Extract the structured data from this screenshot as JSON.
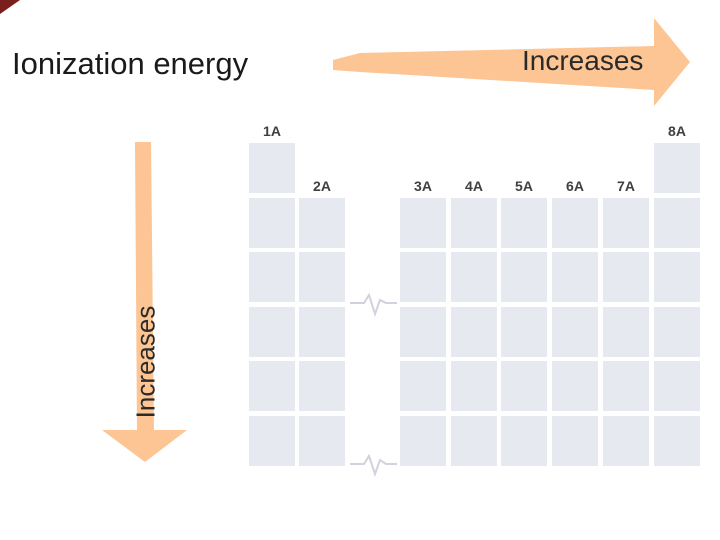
{
  "title": "Ionization energy",
  "horizontal_arrow": {
    "label": "Increases",
    "color": "#fcc593"
  },
  "vertical_arrow": {
    "label": "Increases",
    "color": "#fcc593"
  },
  "group_labels": {
    "g1": "1A",
    "g2": "2A",
    "g3": "3A",
    "g4": "4A",
    "g5": "5A",
    "g6": "6A",
    "g7": "7A",
    "g8": "8A"
  },
  "colors": {
    "cell": "#e7e9f1",
    "accent": "#7a1e1e"
  }
}
